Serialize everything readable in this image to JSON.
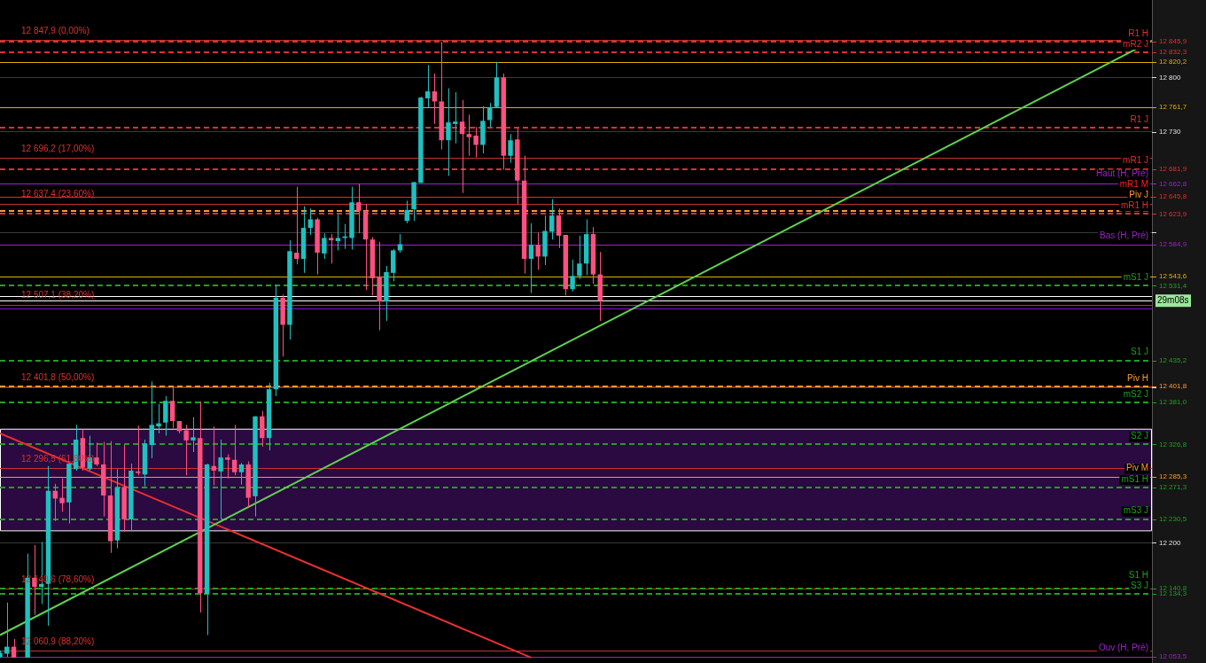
{
  "chart_data": {
    "type": "candlestick",
    "tick_labels": "y",
    "grid": "y",
    "categories": [
      null,
      null,
      null,
      null,
      null,
      null,
      null,
      null,
      null,
      null,
      null,
      null,
      null,
      null,
      null,
      null,
      null,
      null,
      null,
      null,
      null,
      null,
      null,
      null,
      null,
      null,
      null,
      null,
      null,
      null,
      null,
      null,
      null,
      null,
      null,
      null,
      null,
      null,
      null,
      null,
      null,
      null,
      null,
      null,
      null,
      null,
      null,
      null,
      null,
      null,
      null,
      null,
      null,
      null,
      null,
      null,
      null,
      null,
      null,
      null,
      null,
      null,
      null,
      null,
      null,
      null,
      null,
      null,
      null,
      null,
      null,
      null,
      null,
      null,
      null,
      null,
      null,
      null,
      null,
      null,
      null,
      null,
      null,
      null,
      null,
      null,
      null,
      null,
      null,
      null,
      null,
      null,
      null,
      null,
      null,
      null,
      null,
      null,
      null,
      null,
      null,
      null,
      null,
      null,
      null,
      null,
      null,
      null,
      null,
      null,
      null,
      null,
      null,
      null,
      null,
      null,
      null,
      null,
      null,
      null,
      null,
      null,
      null,
      null,
      null,
      null,
      null,
      null,
      null,
      null,
      null,
      null,
      null,
      null,
      null,
      null,
      null,
      null,
      null,
      null,
      null,
      null,
      null,
      null,
      null,
      null,
      null,
      null,
      null,
      null,
      null,
      null,
      null,
      null,
      null,
      null,
      null,
      null,
      null,
      null,
      null,
      null,
      null,
      null,
      null,
      null,
      null,
      null
    ],
    "ohlc": [
      [
        12053,
        12061,
        12052,
        12058
      ],
      [
        12057,
        12123,
        12053,
        12066
      ],
      [
        12066,
        12076,
        12052,
        12052
      ],
      null,
      [
        12052,
        12186,
        12052,
        12155
      ],
      [
        12155,
        12197,
        12107,
        12143
      ],
      [
        12143,
        12201,
        12121,
        12147
      ],
      [
        12147,
        12299,
        12093,
        12267
      ],
      [
        12267,
        12276,
        12228,
        12257
      ],
      [
        12258,
        12283,
        12240,
        12251
      ],
      [
        12252,
        12302,
        12225,
        12302
      ],
      [
        12295,
        12352,
        12293,
        12333
      ],
      [
        12335,
        12346,
        12293,
        12297
      ],
      [
        12295,
        12338,
        12293,
        12310
      ],
      [
        12310,
        12329,
        12299,
        12301
      ],
      [
        12301,
        12330,
        12234,
        12261
      ],
      [
        12261,
        12331,
        12187,
        12202
      ],
      [
        12203,
        12295,
        12193,
        12271
      ],
      [
        12272,
        12326,
        12214,
        12230
      ],
      [
        12230,
        12302,
        12215,
        12293
      ],
      [
        12292,
        12351,
        12287,
        12290
      ],
      [
        12288,
        12333,
        12273,
        12328
      ],
      [
        12326,
        12408,
        12309,
        12352
      ],
      [
        12350,
        12379,
        12341,
        12354
      ],
      [
        12355,
        12389,
        12338,
        12383
      ],
      [
        12383,
        12401,
        12348,
        12357
      ],
      [
        12357,
        12357,
        12341,
        12344
      ],
      [
        12345,
        12352,
        12287,
        12332
      ],
      [
        12332,
        12362,
        12317,
        12336
      ],
      [
        12335,
        12382,
        12110,
        12135
      ],
      [
        12134,
        12302,
        12081,
        12301
      ],
      [
        12299,
        12350,
        12274,
        12293
      ],
      [
        12292,
        12333,
        12230,
        12310
      ],
      [
        12310,
        12314,
        12283,
        12307
      ],
      [
        12307,
        12352,
        12287,
        12291
      ],
      [
        12291,
        12303,
        12275,
        12301
      ],
      [
        12301,
        12305,
        12246,
        12258
      ],
      [
        12260,
        12363,
        12234,
        12363
      ],
      [
        12363,
        12370,
        12324,
        12335
      ],
      [
        12335,
        12406,
        12319,
        12398
      ],
      [
        12398,
        12533,
        12389,
        12516
      ],
      [
        12516,
        12520,
        12440,
        12481
      ],
      [
        12481,
        12590,
        12462,
        12576
      ],
      [
        12574,
        12659,
        12559,
        12566
      ],
      [
        12566,
        12634,
        12548,
        12606
      ],
      [
        12606,
        12631,
        12597,
        12617
      ],
      [
        12617,
        12619,
        12546,
        12574
      ],
      [
        12573,
        12599,
        12566,
        12593
      ],
      [
        12593,
        12598,
        12560,
        12590
      ],
      [
        12589,
        12623,
        12577,
        12593
      ],
      [
        12593,
        12611,
        12579,
        12595
      ],
      [
        12593,
        12659,
        12578,
        12639
      ],
      [
        12639,
        12663,
        12599,
        12628
      ],
      [
        12628,
        12637,
        12526,
        12591
      ],
      [
        12591,
        12594,
        12519,
        12541
      ],
      [
        12543,
        12588,
        12474,
        12511
      ],
      [
        12511,
        12557,
        12486,
        12549
      ],
      [
        12548,
        12579,
        12537,
        12577
      ],
      [
        12577,
        12598,
        12574,
        12585
      ],
      [
        12615,
        12641,
        12612,
        12629
      ],
      [
        12630,
        12665,
        12615,
        12665
      ],
      [
        12664,
        12775,
        12664,
        12774
      ],
      [
        12773,
        12816,
        12761,
        12782
      ],
      [
        12782,
        12805,
        12740,
        12769
      ],
      [
        12769,
        12846,
        12707,
        12719
      ],
      [
        12719,
        12786,
        12673,
        12742
      ],
      [
        12740,
        12781,
        12715,
        12743
      ],
      [
        12743,
        12771,
        12651,
        12727
      ],
      [
        12727,
        12752,
        12699,
        12723
      ],
      [
        12725,
        12736,
        12697,
        12713
      ],
      [
        12713,
        12763,
        12702,
        12744
      ],
      [
        12745,
        12767,
        12736,
        12761
      ],
      [
        12762,
        12820,
        12761,
        12800
      ],
      [
        12800,
        12805,
        12681,
        12699
      ],
      [
        12699,
        12727,
        12690,
        12719
      ],
      [
        12720,
        12734,
        12637,
        12667
      ],
      [
        12667,
        12699,
        12547,
        12566
      ],
      [
        12566,
        12612,
        12522,
        12584
      ],
      [
        12584,
        12600,
        12552,
        12569
      ],
      [
        12569,
        12622,
        12558,
        12602
      ],
      [
        12601,
        12643,
        12591,
        12622
      ],
      [
        12622,
        12631,
        12580,
        12596
      ],
      [
        12597,
        12597,
        12519,
        12527
      ],
      [
        12527,
        12565,
        12524,
        12544
      ],
      [
        12544,
        12596,
        12540,
        12560
      ],
      [
        12560,
        12617,
        12545,
        12598
      ],
      [
        12598,
        12607,
        12534,
        12546
      ],
      [
        12546,
        12575,
        12486,
        12512
      ],
      null,
      null,
      null,
      null,
      null,
      null,
      null,
      null,
      null,
      null,
      null,
      null,
      null,
      null,
      null,
      null,
      null,
      null,
      null,
      null,
      null,
      null,
      null,
      null,
      null,
      null,
      null,
      null,
      null,
      null,
      null,
      null,
      null,
      null,
      null,
      null,
      null,
      null,
      null,
      null,
      null,
      null,
      null,
      null,
      null,
      null,
      null,
      null,
      null,
      null,
      null,
      null,
      null,
      null,
      null,
      null,
      null,
      null,
      null,
      null,
      null,
      null,
      null,
      null,
      null,
      null,
      null,
      null,
      null,
      null,
      null,
      null,
      null,
      null,
      null,
      null,
      null,
      null,
      null,
      null
    ],
    "colors": [
      "#20c0c0",
      "#20c0c0",
      "#ff5080",
      null,
      "#20c0c0",
      "#ff5080",
      "#20c0c0",
      "#20c0c0",
      "#ff5080",
      "#ff5080",
      "#20c0c0",
      "#20c0c0",
      "#ff5080",
      "#20c0c0",
      "#ff5080",
      "#ff5080",
      "#ff5080",
      "#20c0c0",
      "#ff5080",
      "#20c0c0",
      "#ff5080",
      "#20c0c0",
      "#20c0c0",
      "#20c0c0",
      "#20c0c0",
      "#ff5080",
      "#ff5080",
      "#ff5080",
      "#20c0c0",
      "#ff5080",
      "#20c0c0",
      "#ff5080",
      "#20c0c0",
      "#ff5080",
      "#ff5080",
      "#20c0c0",
      "#ff5080",
      "#20c0c0",
      "#ff5080",
      "#20c0c0",
      "#20c0c0",
      "#ff5080",
      "#20c0c0",
      "#ff5080",
      "#20c0c0",
      "#20c0c0",
      "#ff5080",
      "#20c0c0",
      "#ff5080",
      "#20c0c0",
      "#20c0c0",
      "#20c0c0",
      "#ff5080",
      "#ff5080",
      "#ff5080",
      "#ff5080",
      "#20c0c0",
      "#20c0c0",
      "#20c0c0",
      "#20c0c0",
      "#20c0c0",
      "#20c0c0",
      "#20c0c0",
      "#ff5080",
      "#ff5080",
      "#20c0c0",
      "#20c0c0",
      "#ff5080",
      "#ff5080",
      "#ff5080",
      "#20c0c0",
      "#20c0c0",
      "#20c0c0",
      "#ff5080",
      "#20c0c0",
      "#ff5080",
      "#ff5080",
      "#20c0c0",
      "#ff5080",
      "#20c0c0",
      "#20c0c0",
      "#ff5080",
      "#ff5080",
      "#20c0c0",
      "#20c0c0",
      "#20c0c0",
      "#ff5080",
      "#ff5080",
      null,
      null,
      null,
      null,
      null,
      null,
      null,
      null,
      null,
      null,
      null,
      null,
      null,
      null,
      null,
      null,
      null,
      null,
      null,
      null,
      null,
      null,
      null,
      null,
      null,
      null,
      null,
      null,
      null,
      null,
      null,
      null,
      null,
      null,
      null,
      null,
      null,
      null,
      null,
      null,
      null,
      null,
      null,
      null,
      null,
      null,
      null,
      null,
      null,
      null,
      null,
      null,
      null,
      null,
      null,
      null,
      null,
      null,
      null,
      null,
      null,
      null,
      null,
      null,
      null,
      null,
      null,
      null,
      null,
      null,
      null,
      null,
      null,
      null,
      null,
      null,
      null,
      null,
      null,
      null
    ],
    "series": [
      {
        "type": "line",
        "color": "#5fd050",
        "values": [
          12081,
          null,
          null,
          null,
          null,
          null,
          null,
          null,
          null,
          null,
          null,
          null,
          null,
          null,
          null,
          null,
          null,
          null,
          null,
          null,
          null,
          null,
          null,
          null,
          null,
          null,
          null,
          null,
          null,
          null,
          null,
          null,
          null,
          null,
          null,
          null,
          null,
          null,
          null,
          null,
          null,
          null,
          null,
          null,
          null,
          null,
          null,
          null,
          null,
          null,
          null,
          null,
          null,
          null,
          null,
          null,
          null,
          null,
          null,
          null,
          null,
          null,
          null,
          null,
          null,
          null,
          null,
          null,
          null,
          null,
          null,
          null,
          null,
          null,
          null,
          null,
          null,
          null,
          null,
          null,
          null,
          null,
          null,
          null,
          null,
          null,
          null,
          null,
          null,
          null,
          null,
          null,
          null,
          null,
          null,
          null,
          null,
          null,
          null,
          null,
          null,
          null,
          null,
          null,
          null,
          null,
          null,
          null,
          null,
          null,
          null,
          null,
          null,
          null,
          null,
          null,
          null,
          null,
          null,
          null,
          null,
          null,
          null,
          null,
          null,
          null,
          null,
          null,
          null,
          null,
          null,
          null,
          null,
          null,
          null,
          null,
          null,
          null,
          null,
          null,
          null,
          null,
          null,
          null,
          null,
          null,
          null,
          null,
          null,
          null,
          null,
          null,
          null,
          null,
          null,
          null,
          null,
          null,
          null,
          null,
          null,
          null,
          null,
          null,
          null,
          null,
          null,
          12847
        ]
      },
      {
        "type": "line",
        "color": "#e83030",
        "values": [
          12341,
          null,
          null,
          null,
          null,
          null,
          null,
          null,
          null,
          null,
          null,
          null,
          null,
          null,
          null,
          null,
          null,
          null,
          null,
          null,
          null,
          null,
          null,
          null,
          null,
          null,
          null,
          null,
          null,
          null,
          null,
          null,
          null,
          null,
          null,
          null,
          null,
          null,
          null,
          null,
          null,
          null,
          null,
          null,
          null,
          null,
          null,
          null,
          null,
          null,
          null,
          null,
          null,
          null,
          null,
          null,
          null,
          null,
          null,
          null,
          null,
          null,
          null,
          null,
          null,
          null,
          null,
          null,
          null,
          null,
          null,
          null,
          null,
          null,
          null,
          null,
          null,
          12052,
          null,
          null,
          null,
          null,
          null,
          null,
          null,
          null,
          null,
          null,
          null,
          null,
          null,
          null,
          null,
          null,
          null,
          null,
          null,
          null,
          null,
          null,
          null,
          null,
          null,
          null,
          null,
          null,
          null,
          null,
          null,
          null,
          null,
          null,
          null,
          null,
          null,
          null,
          null,
          null,
          null,
          null,
          null,
          null,
          null,
          null,
          null,
          null,
          null,
          null,
          null,
          null,
          null,
          null,
          null,
          null,
          null,
          null,
          null,
          null,
          null,
          null,
          null,
          null,
          null,
          null,
          null,
          null,
          null,
          null,
          null,
          null,
          null,
          null,
          null,
          null,
          null,
          null,
          null,
          null,
          null,
          null,
          null,
          null,
          null,
          null,
          null,
          null,
          null,
          null
        ]
      }
    ],
    "ylim": [
      12045,
      12899.8
    ],
    "yticks": [
      {
        "value": 12845.9,
        "label": "12 845,9"
      },
      {
        "value": 12832.3,
        "label": "12 832,3"
      },
      {
        "value": 12820.2,
        "label": "12 820,2"
      },
      {
        "value": 12800,
        "label": "12 800"
      },
      {
        "value": 12761.7,
        "label": "12 761,7"
      },
      {
        "value": 12730,
        "label": "12 730"
      },
      {
        "value": 12681.9,
        "label": "12 681,9"
      },
      {
        "value": 12662.8,
        "label": "12 662,8"
      },
      {
        "value": 12645.8,
        "label": "12 645,8"
      },
      {
        "value": 12623.9,
        "label": "12 623,9"
      },
      {
        "value": 12600,
        "label": null
      },
      {
        "value": 12584.9,
        "label": "12 584,9"
      },
      {
        "value": 12543.6,
        "label": "12 543,6"
      },
      {
        "value": 12531.4,
        "label": "12 531,4"
      },
      {
        "value": 12435.2,
        "label": "12 435,2"
      },
      {
        "value": 12401.8,
        "label": "12 401,8"
      },
      {
        "value": 12400,
        "label": null
      },
      {
        "value": 12381.0,
        "label": "12 381,0"
      },
      {
        "value": 12326.8,
        "label": "12 326,8"
      },
      {
        "value": 12285.3,
        "label": "12 285,3"
      },
      {
        "value": 12271.3,
        "label": "12 271,3"
      },
      {
        "value": 12230.5,
        "label": "12 230,5"
      },
      {
        "value": 12200,
        "label": "12 200"
      },
      {
        "value": 12140.8,
        "label": "12 140,8"
      },
      {
        "value": 12134.3,
        "label": "12 134,3"
      },
      {
        "value": 12053.5,
        "label": "12 053,5"
      }
    ],
    "bands": [
      {
        "axis": "y",
        "from": 12216,
        "to": 12347,
        "color": "#2a0a40"
      }
    ],
    "ref_lines": [
      {
        "axis": "y",
        "value": 12845.9,
        "label": "R1 H",
        "color": "#e03030",
        "line_style": "dashed"
      },
      {
        "axis": "y",
        "value": 12832.3,
        "label": "mR2 J",
        "color": "#e03030",
        "line_style": "dashed"
      },
      {
        "axis": "y",
        "value": 12820.2,
        "color": "#e0b000",
        "line_style": "solid"
      },
      {
        "axis": "y",
        "value": 12761.7,
        "color": "#e0b000",
        "line_style": "solid"
      },
      {
        "axis": "y",
        "value": 12735,
        "label": "R1 J",
        "color": "#e03030",
        "line_style": "dashed"
      },
      {
        "axis": "y",
        "value": 12681.9,
        "label": "mR1 J",
        "color": "#e03030",
        "line_style": "dashed"
      },
      {
        "axis": "y",
        "value": 12662.8,
        "label": "Haut (H, Pré)",
        "color": "#a020c8",
        "line_style": "solid"
      },
      {
        "axis": "y",
        "value": 12645.8,
        "label": "mR1 M",
        "color": "#ff2020",
        "line_style": "solid"
      },
      {
        "axis": "y",
        "value": 12627.7,
        "label": "Piv J",
        "color": "#ff9a30",
        "line_style": "dashed"
      },
      {
        "axis": "y",
        "value": 12623.9,
        "label": "mR1 H",
        "color": "#e03030",
        "line_style": "dashed"
      },
      {
        "axis": "y",
        "value": 12584.9,
        "label": "Bas (H, Pré)",
        "color": "#a020c8",
        "line_style": "solid"
      },
      {
        "axis": "y",
        "value": 12543.6,
        "color": "#e0b000",
        "line_style": "solid"
      },
      {
        "axis": "y",
        "value": 12531.4,
        "label": "mS1 J",
        "color": "#20a020",
        "line_style": "dashed"
      },
      {
        "axis": "y",
        "value": 12518,
        "color": "#ffffff",
        "line_style": "solid"
      },
      {
        "axis": "y",
        "value": 12512,
        "color": "#ffffff",
        "line_style": "solid"
      },
      {
        "axis": "y",
        "value": 12502,
        "color": "#8a10d0",
        "line_style": "solid"
      },
      {
        "axis": "y",
        "value": 12435.2,
        "label": "S1 J",
        "color": "#20a020",
        "line_style": "dashed"
      },
      {
        "axis": "y",
        "value": 12401.8,
        "label": "Piv H",
        "color": "#ff9a30",
        "line_style": "dashed"
      },
      {
        "axis": "y",
        "value": 12381.0,
        "label": "mS2 J",
        "color": "#20a020",
        "line_style": "dashed"
      },
      {
        "axis": "y",
        "value": 12326.8,
        "label": "S2 J",
        "color": "#20a020",
        "line_style": "dashed"
      },
      {
        "axis": "y",
        "value": 12285.3,
        "label": "Piv M",
        "color": "#ff9a30",
        "line_style": "solid"
      },
      {
        "axis": "y",
        "value": 12271.3,
        "label": "mS1 H",
        "color": "#20a020",
        "line_style": "dashed"
      },
      {
        "axis": "y",
        "value": 12230.5,
        "label": "mS3 J",
        "color": "#20a020",
        "line_style": "dashed"
      },
      {
        "axis": "y",
        "value": 12140.8,
        "label": "S1 H",
        "color": "#20a020",
        "line_style": "dashed"
      },
      {
        "axis": "y",
        "value": 12134.3,
        "label": "S3 J",
        "color": "#20a020",
        "line_style": "dashed"
      },
      {
        "axis": "y",
        "value": 12053.5,
        "label": "Ouv (H, Pré)",
        "color": "#a020c8",
        "line_style": "solid"
      },
      {
        "axis": "y",
        "value": 12847.9,
        "color": "#c83030",
        "line_style": "solid"
      },
      {
        "axis": "y",
        "value": 12696.2,
        "color": "#c83030",
        "line_style": "solid"
      },
      {
        "axis": "y",
        "value": 12637.4,
        "color": "#c83030",
        "line_style": "solid"
      },
      {
        "axis": "y",
        "value": 12507.1,
        "color": "#c83030",
        "line_style": "solid"
      },
      {
        "axis": "y",
        "value": 12401.8,
        "color": "#c83030",
        "line_style": "solid"
      },
      {
        "axis": "y",
        "value": 12296.5,
        "color": "#c83030",
        "line_style": "solid"
      },
      {
        "axis": "y",
        "value": 12140.6,
        "color": "#c83030",
        "line_style": "solid"
      },
      {
        "axis": "y",
        "value": 12060.9,
        "color": "#c83030",
        "line_style": "solid"
      }
    ],
    "annotations": [
      {
        "text": "12 847,9 (0,00%)",
        "y": 12847.9
      },
      {
        "text": "12 696,2 (17,00%)",
        "y": 12696.2
      },
      {
        "text": "12 637,4 (23,60%)",
        "y": 12637.4
      },
      {
        "text": "12 507,1 (38,20%)",
        "y": 12507.1
      },
      {
        "text": "12 401,8 (50,00%)",
        "y": 12401.8
      },
      {
        "text": "12 296,5 (61,80%)",
        "y": 12296.5
      },
      {
        "text": "12 140,6 (78,60%)",
        "y": 12140.6
      },
      {
        "text": "12 060,9 (88,20%)",
        "y": 12060.9
      },
      "29m08s"
    ]
  }
}
